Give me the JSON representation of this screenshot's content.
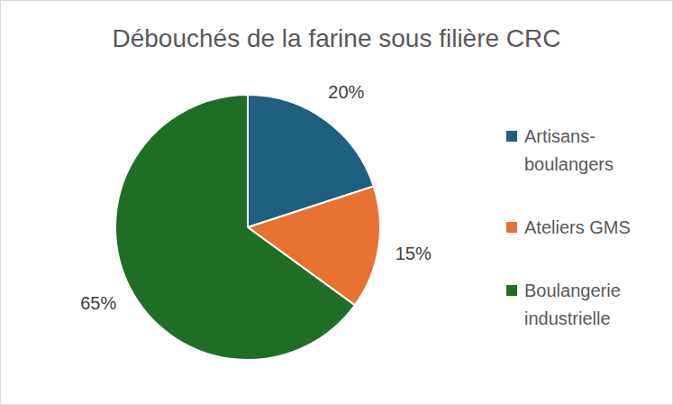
{
  "chart_data": {
    "type": "pie",
    "title": "Débouchés de la farine sous filière CRC",
    "categories": [
      "Artisans-boulangers",
      "Ateliers GMS",
      "Boulangerie industrielle"
    ],
    "values": [
      20,
      15,
      65
    ],
    "value_labels": [
      "20%",
      "15%",
      "65%"
    ],
    "colors": [
      "#1f5f80",
      "#e97132",
      "#1f6e25"
    ],
    "data_labels": true,
    "legend": "right"
  }
}
